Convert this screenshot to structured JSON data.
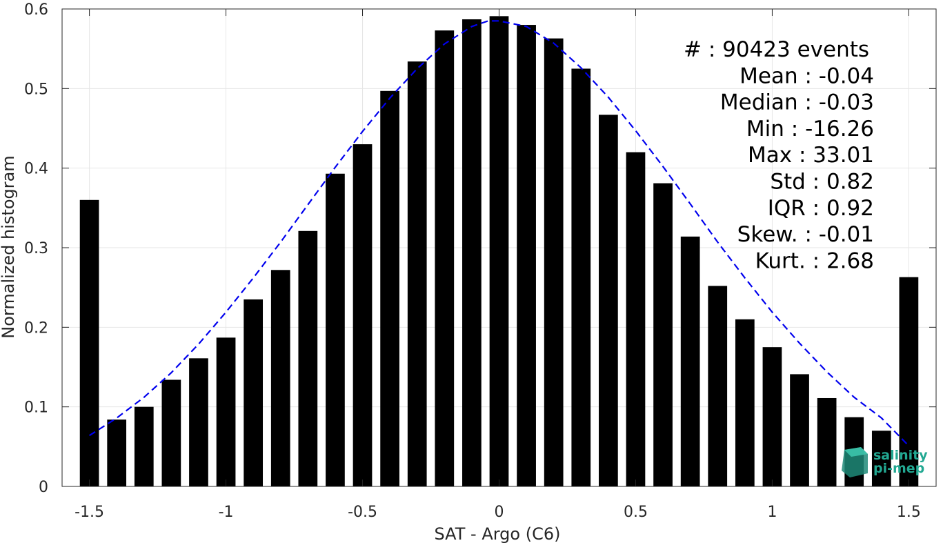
{
  "chart_data": {
    "type": "bar",
    "xlabel": "SAT - Argo (C6)",
    "ylabel": "Normalized histogram",
    "xlim": [
      -1.6,
      1.6
    ],
    "ylim": [
      0,
      0.6
    ],
    "xticks": [
      -1.5,
      -1,
      -0.5,
      0,
      0.5,
      1,
      1.5
    ],
    "xtick_labels": [
      "-1.5",
      "-1",
      "-0.5",
      "0",
      "0.5",
      "1",
      "1.5"
    ],
    "yticks": [
      0,
      0.1,
      0.2,
      0.3,
      0.4,
      0.5,
      0.6
    ],
    "ytick_labels": [
      "0",
      "0.1",
      "0.2",
      "0.3",
      "0.4",
      "0.5",
      "0.6"
    ],
    "grid": true,
    "bar_color": "#000000",
    "bars": {
      "x": [
        -1.5,
        -1.4,
        -1.3,
        -1.2,
        -1.1,
        -1.0,
        -0.9,
        -0.8,
        -0.7,
        -0.6,
        -0.5,
        -0.4,
        -0.3,
        -0.2,
        -0.1,
        0.0,
        0.1,
        0.2,
        0.3,
        0.4,
        0.5,
        0.6,
        0.7,
        0.8,
        0.9,
        1.0,
        1.1,
        1.2,
        1.3,
        1.4,
        1.5
      ],
      "values": [
        0.36,
        0.084,
        0.1,
        0.134,
        0.161,
        0.187,
        0.235,
        0.272,
        0.321,
        0.393,
        0.43,
        0.497,
        0.534,
        0.573,
        0.587,
        0.591,
        0.58,
        0.563,
        0.525,
        0.467,
        0.42,
        0.381,
        0.314,
        0.252,
        0.21,
        0.175,
        0.141,
        0.111,
        0.087,
        0.07,
        0.263
      ]
    },
    "fit_curve": {
      "style": "dashed",
      "color": "#0000ee",
      "x": [
        -1.5,
        -1.4,
        -1.3,
        -1.2,
        -1.1,
        -1.0,
        -0.9,
        -0.8,
        -0.7,
        -0.6,
        -0.5,
        -0.4,
        -0.3,
        -0.2,
        -0.1,
        -0.04,
        0.0,
        0.1,
        0.2,
        0.3,
        0.4,
        0.5,
        0.6,
        0.7,
        0.8,
        0.9,
        1.0,
        1.1,
        1.2,
        1.3,
        1.4,
        1.5
      ],
      "values": [
        0.064,
        0.086,
        0.112,
        0.143,
        0.179,
        0.219,
        0.262,
        0.307,
        0.354,
        0.401,
        0.446,
        0.488,
        0.525,
        0.556,
        0.578,
        0.585,
        0.585,
        0.578,
        0.557,
        0.526,
        0.489,
        0.447,
        0.402,
        0.355,
        0.307,
        0.262,
        0.219,
        0.18,
        0.144,
        0.112,
        0.086,
        0.051
      ]
    },
    "stats": [
      {
        "text": "#  : 90423 events",
        "anchor": "start"
      },
      {
        "text": "Mean : -0.04",
        "anchor": "end"
      },
      {
        "text": "Median : -0.03",
        "anchor": "end"
      },
      {
        "text": "Min : -16.26",
        "anchor": "end"
      },
      {
        "text": "Max : 33.01",
        "anchor": "end"
      },
      {
        "text": "Std : 0.82",
        "anchor": "end"
      },
      {
        "text": "IQR : 0.92",
        "anchor": "end"
      },
      {
        "text": "Skew. : -0.01",
        "anchor": "end"
      },
      {
        "text": "Kurt. : 2.68",
        "anchor": "end"
      }
    ]
  },
  "logo": {
    "line1": "salinity",
    "line2": "pi-mep",
    "color": "#22a892"
  }
}
